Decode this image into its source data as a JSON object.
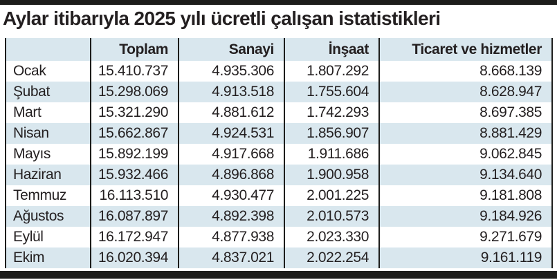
{
  "title": "Aylar itibarıyla 2025 yılı ücretli çalışan istatistikleri",
  "colors": {
    "bar_black": "#1d1d1b",
    "row_highlight": "#d9e7ee",
    "text": "#231f20"
  },
  "chart_data": {
    "type": "table",
    "title": "Aylar itibarıyla 2025 yılı ücretli çalışan istatistikleri",
    "columns": [
      "",
      "Toplam",
      "Sanayi",
      "İnşaat",
      "Ticaret ve hizmetler"
    ],
    "rows": [
      [
        "Ocak",
        "15.410.737",
        "4.935.306",
        "1.807.292",
        "8.668.139"
      ],
      [
        "Şubat",
        "15.298.069",
        "4.913.518",
        "1.755.604",
        "8.628.947"
      ],
      [
        "Mart",
        "15.321.290",
        "4.881.612",
        "1.742.293",
        "8.697.385"
      ],
      [
        "Nisan",
        "15.662.867",
        "4.924.531",
        "1.856.907",
        "8.881.429"
      ],
      [
        "Mayıs",
        "15.892.199",
        "4.917.668",
        "1.911.686",
        "9.062.845"
      ],
      [
        "Haziran",
        "15.932.466",
        "4.896.868",
        "1.900.958",
        "9.134.640"
      ],
      [
        "Temmuz",
        "16.113.510",
        "4.930.477",
        "2.001.225",
        "9.181.808"
      ],
      [
        "Ağustos",
        "16.087.897",
        "4.892.398",
        "2.010.573",
        "9.184.926"
      ],
      [
        "Eylül",
        "16.172.947",
        "4.877.938",
        "2.023.330",
        "9.271.679"
      ],
      [
        "Ekim",
        "16.020.394",
        "4.837.021",
        "2.022.254",
        "9.161.119"
      ]
    ]
  }
}
